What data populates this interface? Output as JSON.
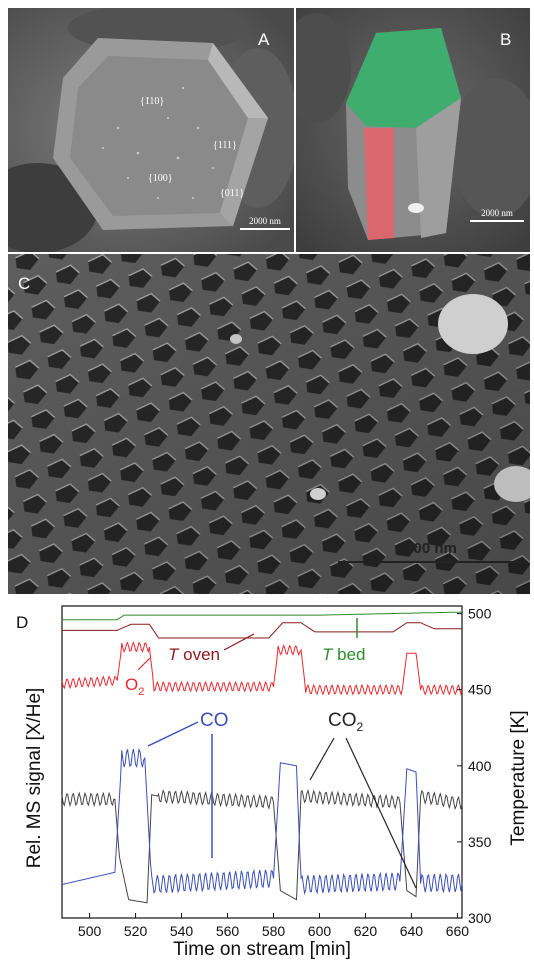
{
  "panels": {
    "A": {
      "label": "A",
      "facets": [
        "{110}",
        "{111}",
        "{100}",
        "{011}"
      ],
      "scale": "2000 nm"
    },
    "B": {
      "label": "B",
      "scale": "2000 nm"
    },
    "C": {
      "label": "C",
      "scale": "300 nm"
    },
    "D": {
      "label": "D"
    }
  },
  "chart_data": {
    "type": "line",
    "xlabel": "Time on stream [min]",
    "ylabel_left": "Rel. MS signal [X/He]",
    "ylabel_right": "Temperature [K]",
    "xlim": [
      488,
      662
    ],
    "ylim_right": [
      300,
      505
    ],
    "xticks": [
      "500",
      "520",
      "540",
      "560",
      "580",
      "600",
      "620",
      "640",
      "660"
    ],
    "yticks_right": [
      "300",
      "350",
      "400",
      "450",
      "500"
    ],
    "annotations": {
      "t_oven_italic": "T",
      "t_oven": " oven",
      "t_bed_italic": "T",
      "t_bed": " bed",
      "o2": "O",
      "o2_sub": "2",
      "co": "CO",
      "co2": "CO",
      "co2_sub": "2"
    },
    "series": [
      {
        "name": "T bed",
        "color": "#2e8b2e",
        "values": [
          [
            488,
            496
          ],
          [
            512,
            496
          ],
          [
            515,
            499
          ],
          [
            600,
            499
          ],
          [
            630,
            500
          ],
          [
            662,
            501
          ]
        ]
      },
      {
        "name": "T oven",
        "color": "#8b1a1a",
        "values": [
          [
            488,
            489
          ],
          [
            512,
            489
          ],
          [
            518,
            493
          ],
          [
            526,
            493
          ],
          [
            530,
            484
          ],
          [
            578,
            484
          ],
          [
            584,
            494
          ],
          [
            592,
            494
          ],
          [
            598,
            488
          ],
          [
            632,
            488
          ],
          [
            638,
            494
          ],
          [
            644,
            494
          ],
          [
            650,
            490
          ],
          [
            662,
            490
          ]
        ]
      },
      {
        "name": "O2",
        "color": "#e8282d",
        "values": [
          [
            488,
            454
          ],
          [
            512,
            456
          ],
          [
            514,
            478
          ],
          [
            526,
            478
          ],
          [
            528,
            452
          ],
          [
            580,
            452
          ],
          [
            582,
            476
          ],
          [
            592,
            476
          ],
          [
            594,
            450
          ],
          [
            636,
            450
          ],
          [
            638,
            474
          ],
          [
            642,
            474
          ],
          [
            644,
            450
          ],
          [
            662,
            450
          ]
        ]
      },
      {
        "name": "CO2",
        "color": "#444444",
        "values": [
          [
            488,
            378
          ],
          [
            511,
            378
          ],
          [
            513,
            340
          ],
          [
            517,
            312
          ],
          [
            525,
            310
          ],
          [
            527,
            381
          ],
          [
            530,
            380
          ],
          [
            580,
            376
          ],
          [
            583,
            318
          ],
          [
            590,
            312
          ],
          [
            592,
            380
          ],
          [
            635,
            376
          ],
          [
            638,
            318
          ],
          [
            642,
            314
          ],
          [
            644,
            380
          ],
          [
            662,
            375
          ]
        ]
      },
      {
        "name": "CO",
        "color": "#3a4fb8",
        "values": [
          [
            488,
            322
          ],
          [
            511,
            330
          ],
          [
            514,
            405
          ],
          [
            524,
            405
          ],
          [
            527,
            322
          ],
          [
            580,
            326
          ],
          [
            583,
            402
          ],
          [
            590,
            400
          ],
          [
            592,
            322
          ],
          [
            635,
            324
          ],
          [
            638,
            398
          ],
          [
            642,
            396
          ],
          [
            644,
            323
          ],
          [
            662,
            323
          ]
        ]
      }
    ]
  }
}
